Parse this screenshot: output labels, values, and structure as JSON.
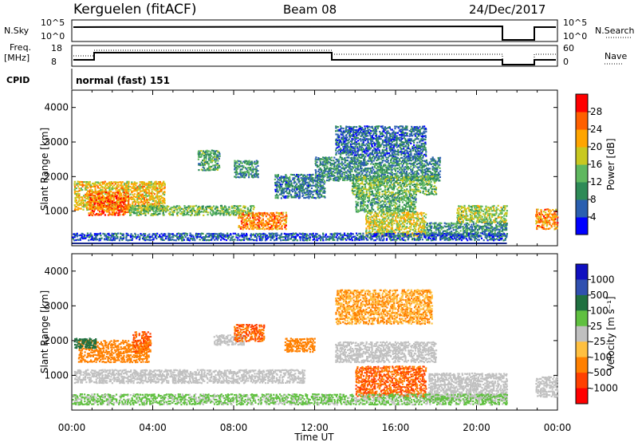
{
  "header": {
    "station": "Kerguelen (fitACF)",
    "beam": "Beam 08",
    "date": "24/Dec/2017"
  },
  "status_panels": {
    "nsky_label": "N.Sky",
    "nsky_ticks": [
      "10^5",
      "10^0"
    ],
    "nsearch_label": "N.Search",
    "nsearch_ticks": [
      "10^5",
      "10^0"
    ],
    "freq_label_line1": "Freq.",
    "freq_label_line2": "[MHz]",
    "freq_ticks": [
      "18",
      "8"
    ],
    "nave_label": "Nave",
    "nave_ticks": [
      "60",
      "0"
    ],
    "cpid_label": "CPID",
    "cpid_value": "normal (fast) 151"
  },
  "colors": {
    "power_scale": [
      "#0000ff",
      "#2a5fb0",
      "#2e8b57",
      "#5fb85f",
      "#c8c820",
      "#ffa500",
      "#ff6000",
      "#ff0000"
    ],
    "velocity_scale": [
      "#1010c0",
      "#3050b0",
      "#207040",
      "#60c040",
      "#c0c0c0",
      "#ffc040",
      "#ff8000",
      "#ff4000",
      "#ff0000"
    ]
  },
  "chart_data": [
    {
      "type": "heatmap",
      "name": "power",
      "ylabel": "Slant Range [km]",
      "yticks": [
        "1000",
        "2000",
        "3000",
        "4000"
      ],
      "ylim": [
        0,
        4500
      ],
      "colorbar_label": "Power [dB]",
      "colorbar_ticks": [
        "4",
        "8",
        "12",
        "16",
        "20",
        "24",
        "28"
      ],
      "clim": [
        0,
        32
      ],
      "xticks": [
        "00:00",
        "04:00",
        "08:00",
        "12:00",
        "16:00",
        "20:00",
        "00:00"
      ],
      "xlim_hours": [
        0,
        24
      ],
      "regions": [
        {
          "x": [
            0.1,
            4.6
          ],
          "y": [
            1050,
            1900
          ],
          "level": 20
        },
        {
          "x": [
            0.8,
            2.8
          ],
          "y": [
            900,
            1600
          ],
          "level": 26
        },
        {
          "x": [
            2.8,
            9.0
          ],
          "y": [
            900,
            1200
          ],
          "level": 14
        },
        {
          "x": [
            8.2,
            10.6
          ],
          "y": [
            500,
            1000
          ],
          "level": 24
        },
        {
          "x": [
            6.2,
            7.3
          ],
          "y": [
            2200,
            2800
          ],
          "level": 12
        },
        {
          "x": [
            8.0,
            9.2
          ],
          "y": [
            2000,
            2500
          ],
          "level": 10
        },
        {
          "x": [
            10.0,
            12.5
          ],
          "y": [
            1400,
            2100
          ],
          "level": 8
        },
        {
          "x": [
            12.0,
            18.2
          ],
          "y": [
            1900,
            2600
          ],
          "level": 9
        },
        {
          "x": [
            13.8,
            18.0
          ],
          "y": [
            1500,
            2050
          ],
          "level": 14
        },
        {
          "x": [
            14.0,
            17.0
          ],
          "y": [
            1000,
            1500
          ],
          "level": 12
        },
        {
          "x": [
            13.0,
            17.5
          ],
          "y": [
            2600,
            3500
          ],
          "level": 7
        },
        {
          "x": [
            14.5,
            17.5
          ],
          "y": [
            300,
            1000
          ],
          "level": 18
        },
        {
          "x": [
            17.5,
            21.5
          ],
          "y": [
            300,
            700
          ],
          "level": 10
        },
        {
          "x": [
            19.0,
            21.5
          ],
          "y": [
            700,
            1200
          ],
          "level": 16
        },
        {
          "x": [
            22.9,
            24.0
          ],
          "y": [
            500,
            1100
          ],
          "level": 24
        },
        {
          "x": [
            0.0,
            21.5
          ],
          "y": [
            180,
            400
          ],
          "level": 6
        }
      ]
    },
    {
      "type": "heatmap",
      "name": "velocity",
      "ylabel": "Slant Range [km]",
      "yticks": [
        "1000",
        "2000",
        "3000",
        "4000"
      ],
      "ylim": [
        0,
        4500
      ],
      "colorbar_label": "Velocity [m s⁻¹]",
      "colorbar_ticks": [
        "1000",
        "500",
        "100",
        "25",
        "-25",
        "-100",
        "-500",
        "-1000"
      ],
      "xticks": [
        "00:00",
        "04:00",
        "08:00",
        "12:00",
        "16:00",
        "20:00",
        "00:00"
      ],
      "xlim_hours": [
        0,
        24
      ],
      "xlabel": "Time UT",
      "regions": [
        {
          "x": [
            0.1,
            4.5
          ],
          "y": [
            800,
            1200
          ],
          "level": 0
        },
        {
          "x": [
            0.3,
            3.8
          ],
          "y": [
            1400,
            2050
          ],
          "level": -120
        },
        {
          "x": [
            3.0,
            3.9
          ],
          "y": [
            1700,
            2300
          ],
          "level": -300
        },
        {
          "x": [
            0.1,
            1.2
          ],
          "y": [
            1800,
            2100
          ],
          "level": 150
        },
        {
          "x": [
            4.5,
            11.5
          ],
          "y": [
            800,
            1200
          ],
          "level": 0
        },
        {
          "x": [
            7.0,
            8.5
          ],
          "y": [
            1900,
            2200
          ],
          "level": 0
        },
        {
          "x": [
            8.0,
            9.5
          ],
          "y": [
            2000,
            2500
          ],
          "level": -300
        },
        {
          "x": [
            10.5,
            12.0
          ],
          "y": [
            1700,
            2100
          ],
          "level": -150
        },
        {
          "x": [
            13.0,
            18.0
          ],
          "y": [
            1400,
            2000
          ],
          "level": 0
        },
        {
          "x": [
            14.0,
            17.5
          ],
          "y": [
            400,
            1300
          ],
          "level": -300
        },
        {
          "x": [
            13.0,
            17.8
          ],
          "y": [
            2500,
            3500
          ],
          "level": -60
        },
        {
          "x": [
            17.6,
            21.5
          ],
          "y": [
            300,
            1100
          ],
          "level": 0
        },
        {
          "x": [
            22.9,
            24.0
          ],
          "y": [
            400,
            1000
          ],
          "level": 0
        },
        {
          "x": [
            0.0,
            21.5
          ],
          "y": [
            180,
            500
          ],
          "level": 20
        }
      ]
    }
  ]
}
